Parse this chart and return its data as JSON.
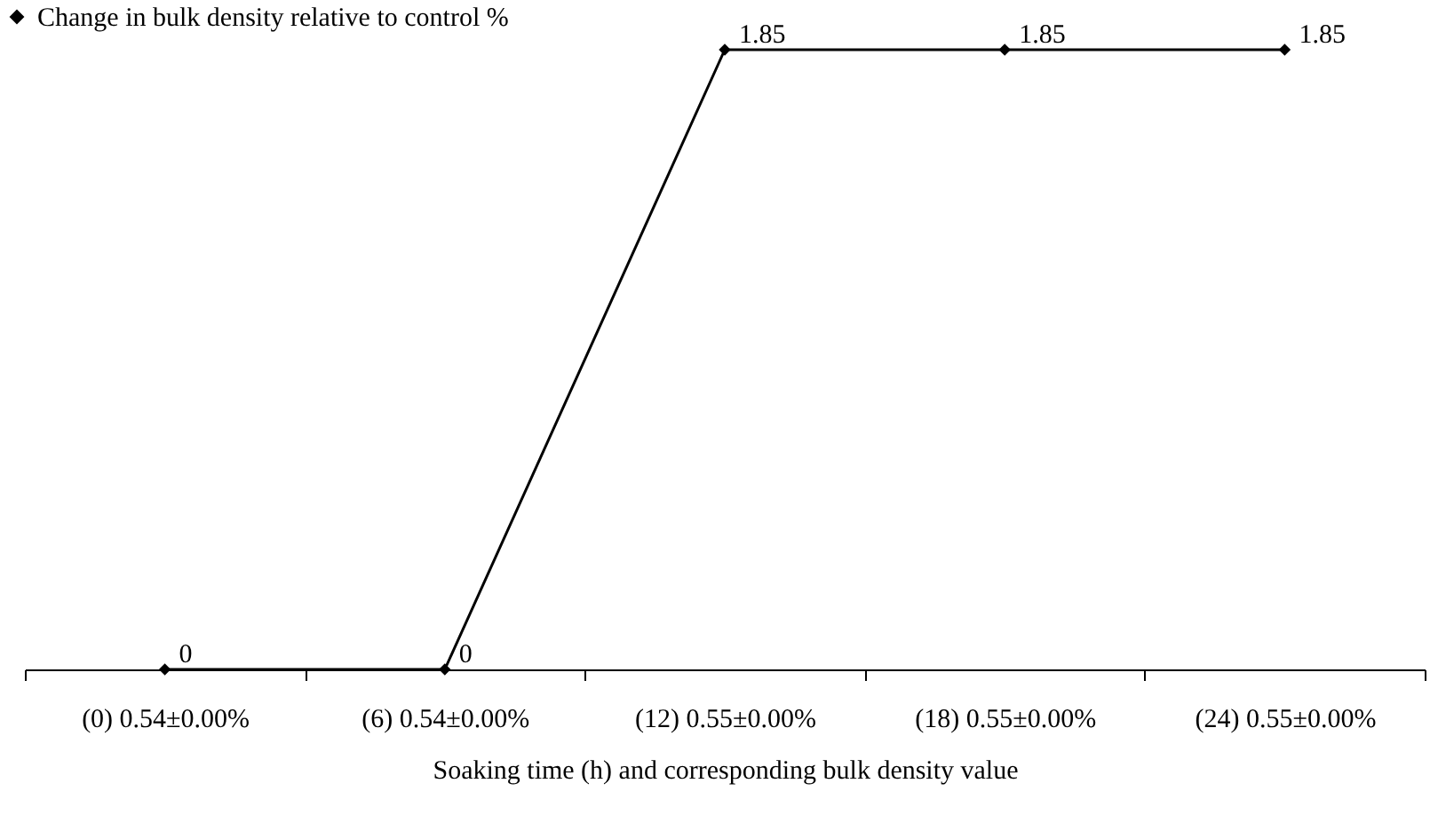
{
  "chart_data": {
    "type": "line",
    "xlabel": "Soaking time (h) and corresponding bulk density value",
    "categories": [
      "(0) 0.54±0.00%",
      "(6) 0.54±0.00%",
      "(12) 0.55±0.00%",
      "(18) 0.55±0.00%",
      "(24) 0.55±0.00%"
    ],
    "series": [
      {
        "name": "Change in bulk density relative to control %",
        "color": "#000000",
        "values": [
          0,
          0,
          1.85,
          1.85,
          1.85
        ]
      }
    ],
    "tick_labels": "x",
    "data_labels": true,
    "marker": "diamond",
    "legend": "top left",
    "line_style": "solid"
  }
}
